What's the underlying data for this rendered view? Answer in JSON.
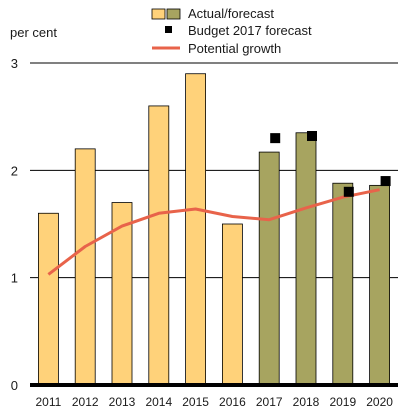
{
  "chart_data": {
    "type": "bar",
    "ylabel": "per cent",
    "ylim": [
      0,
      3
    ],
    "yticks": [
      0,
      1,
      2,
      3
    ],
    "grid": true,
    "legend_position": "top",
    "categories": [
      "2011",
      "2012",
      "2013",
      "2014",
      "2015",
      "2016",
      "2017",
      "2018",
      "2019",
      "2020"
    ],
    "series": [
      {
        "name": "Actual/forecast",
        "type": "bar",
        "values": [
          1.6,
          2.2,
          1.7,
          2.6,
          2.9,
          1.5,
          2.17,
          2.35,
          1.88,
          1.86
        ],
        "actual_color": "#ffd27a",
        "forecast_color": "#a7a460",
        "forecast_from": "2017"
      },
      {
        "name": "Budget 2017 forecast",
        "type": "scatter",
        "x": [
          "2017",
          "2018",
          "2019",
          "2020"
        ],
        "values": [
          2.3,
          2.32,
          1.8,
          1.9
        ],
        "color": "#000000"
      },
      {
        "name": "Potential growth",
        "type": "line",
        "values": [
          1.03,
          1.29,
          1.48,
          1.6,
          1.64,
          1.57,
          1.54,
          1.65,
          1.75,
          1.82
        ],
        "color": "#e8634a"
      }
    ]
  }
}
